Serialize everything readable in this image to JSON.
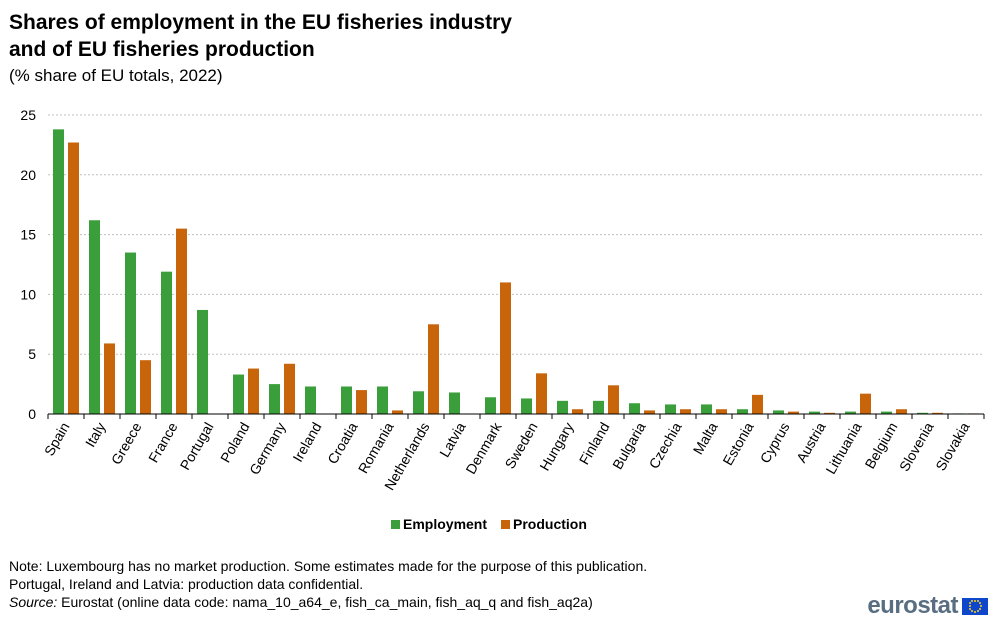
{
  "title_line1": "Shares of employment in the EU fisheries industry",
  "title_line2": "and of EU fisheries production",
  "subtitle": "(% share of EU totals, 2022)",
  "notes": {
    "line1": "Note: Luxembourg has no market production. Some estimates made for the purpose of this publication.",
    "line2": "Portugal, Ireland and Latvia: production data confidential.",
    "source_label": "Source:",
    "source_text": " Eurostat (online data code: nama_10_a64_e, fish_ca_main, fish_aq_q and fish_aq2a)"
  },
  "logo": {
    "text": "eurostat",
    "flag_icon": "eu-flag-icon"
  },
  "colors": {
    "employment": "#3a9f3a",
    "production": "#c8640a",
    "grid": "#bfbfbf",
    "axis": "#000000"
  },
  "chart_data": {
    "type": "bar",
    "title": "Shares of employment in the EU fisheries industry and of EU fisheries production",
    "subtitle": "(% share of EU totals, 2022)",
    "xlabel": "",
    "ylabel": "",
    "ylim": [
      0,
      25
    ],
    "yticks": [
      0,
      5,
      10,
      15,
      20,
      25
    ],
    "grid": true,
    "legend_position": "bottom-center",
    "categories": [
      "Spain",
      "Italy",
      "Greece",
      "France",
      "Portugal",
      "Poland",
      "Germany",
      "Ireland",
      "Croatia",
      "Romania",
      "Netherlands",
      "Latvia",
      "Denmark",
      "Sweden",
      "Hungary",
      "Finland",
      "Bulgaria",
      "Czechia",
      "Malta",
      "Estonia",
      "Cyprus",
      "Austria",
      "Lithuania",
      "Belgium",
      "Slovenia",
      "Slovakia"
    ],
    "series": [
      {
        "name": "Employment",
        "values": [
          23.8,
          16.2,
          13.5,
          11.9,
          8.7,
          3.3,
          2.5,
          2.3,
          2.3,
          2.3,
          1.9,
          1.8,
          1.4,
          1.3,
          1.1,
          1.1,
          0.9,
          0.8,
          0.8,
          0.4,
          0.3,
          0.2,
          0.2,
          0.2,
          0.1,
          0.05
        ]
      },
      {
        "name": "Production",
        "values": [
          22.7,
          5.9,
          4.5,
          15.5,
          null,
          3.8,
          4.2,
          null,
          2.0,
          0.3,
          7.5,
          null,
          11.0,
          3.4,
          0.4,
          2.4,
          0.3,
          0.4,
          0.4,
          1.6,
          0.2,
          0.1,
          1.7,
          0.4,
          0.1,
          0.05
        ]
      }
    ]
  }
}
